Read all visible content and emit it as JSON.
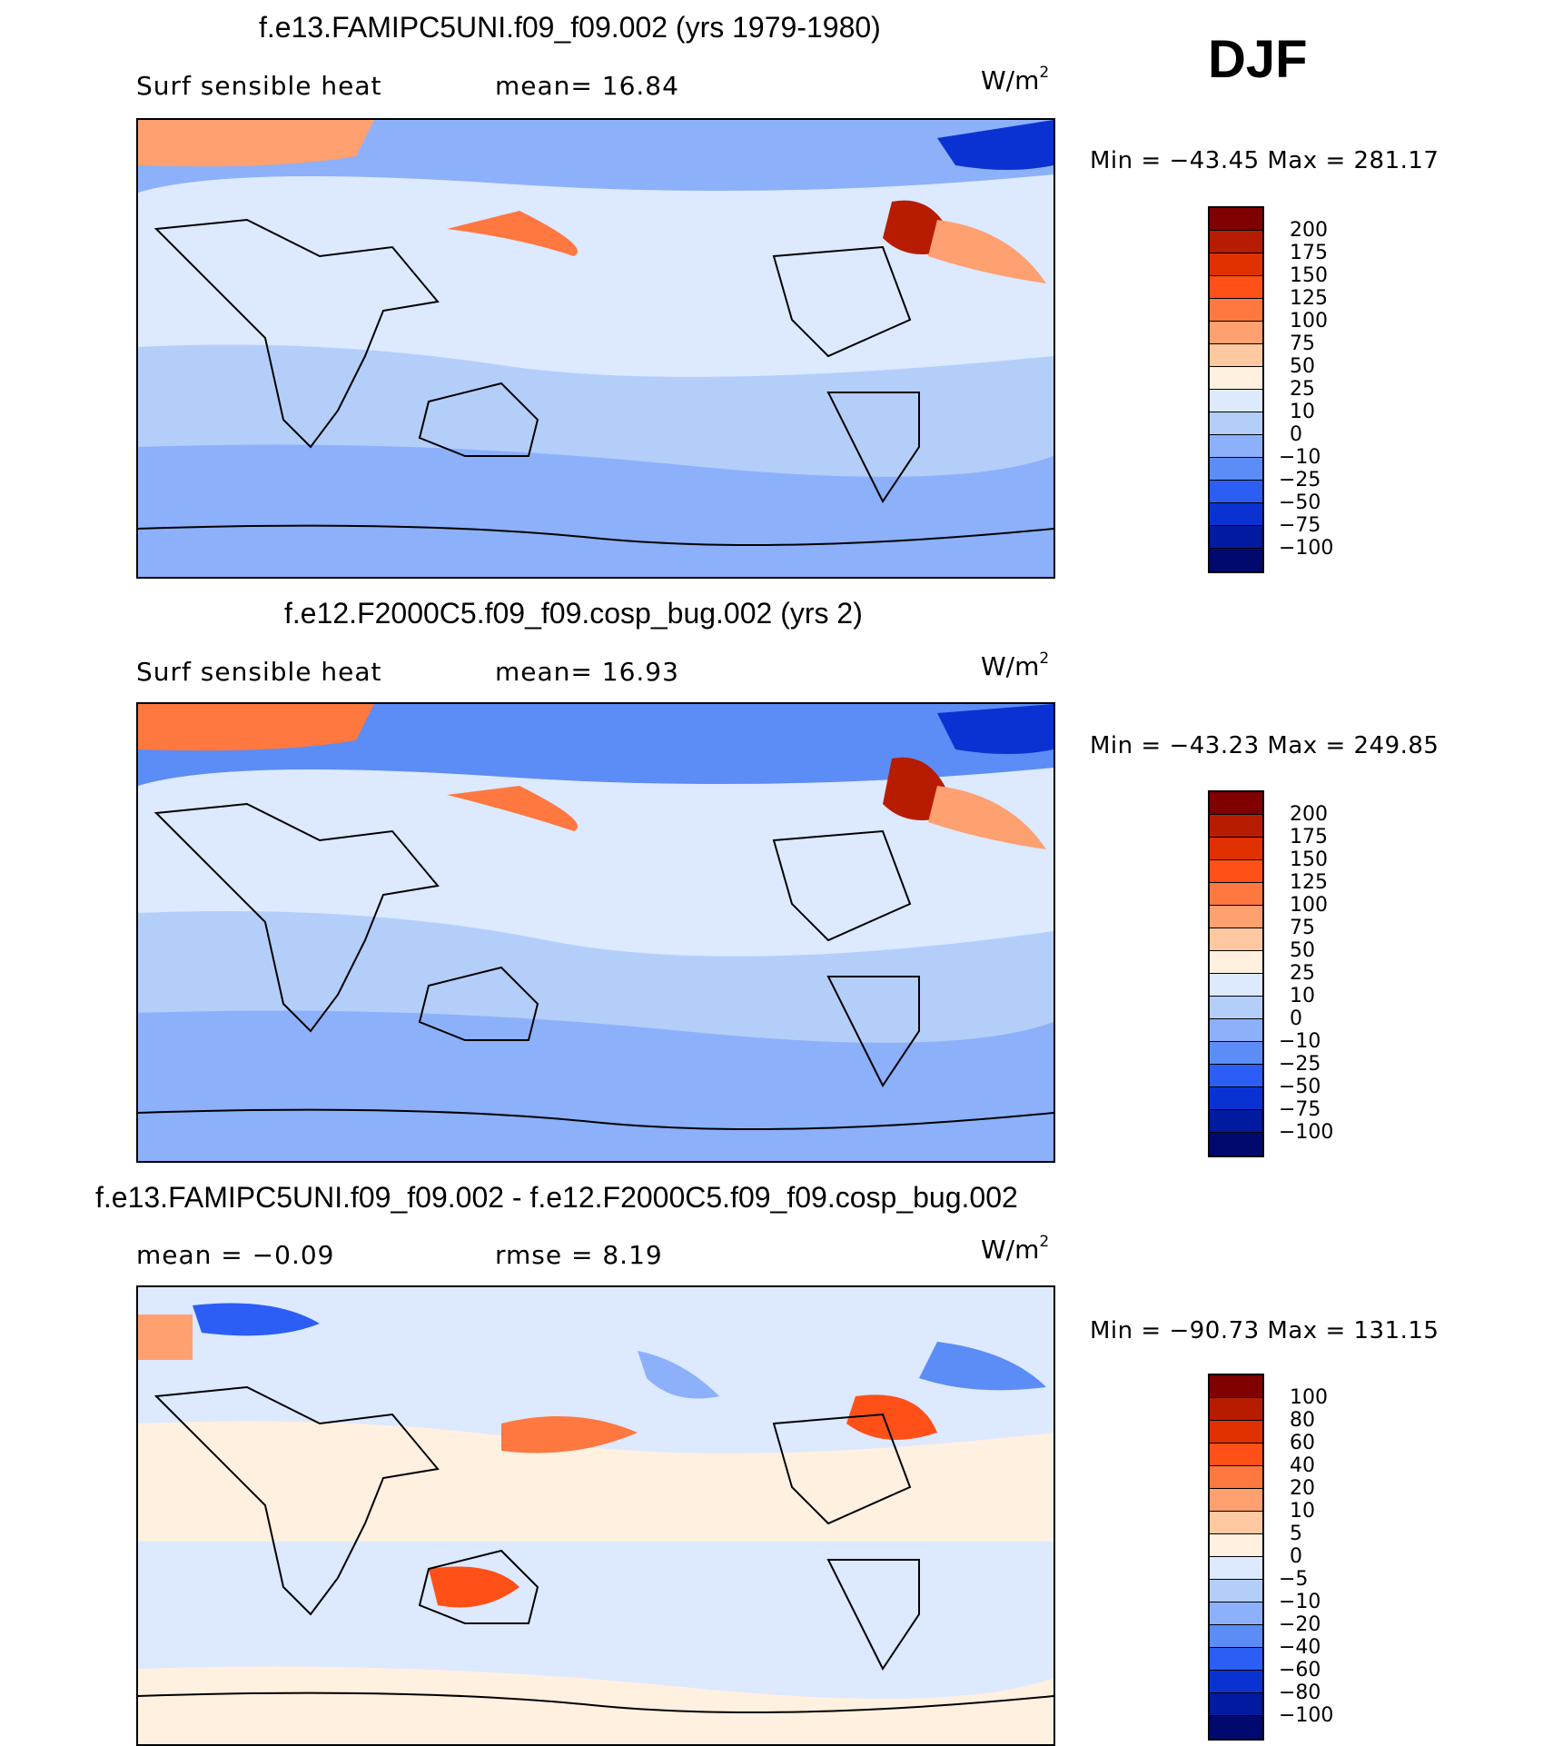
{
  "season": "DJF",
  "panels": [
    {
      "title": "f.e13.FAMIPC5UNI.f09_f09.002 (yrs 1979-1980)",
      "left_label": "Surf  sensible  heat",
      "mid_label": "mean=   16.84",
      "unit": "W/m",
      "unit_sup": "2",
      "minmax": "Min  =  −43.45  Max  =  281.17",
      "map_label": "Surface sensible heat flux map, model run 1979-1980"
    },
    {
      "title": "f.e12.F2000C5.f09_f09.cosp_bug.002 (yrs 2)",
      "left_label": "Surf  sensible  heat",
      "mid_label": "mean=   16.93",
      "unit": "W/m",
      "unit_sup": "2",
      "minmax": "Min  =  −43.23  Max  =  249.85",
      "map_label": "Surface sensible heat flux map, model run yrs 2"
    },
    {
      "title": "f.e13.FAMIPC5UNI.f09_f09.002 - f.e12.F2000C5.f09_f09.cosp_bug.002",
      "left_label": "mean  =    −0.09",
      "mid_label": "rmse  =     8.19",
      "unit": "W/m",
      "unit_sup": "2",
      "minmax": "Min  =  −90.73  Max  =  131.15",
      "map_label": "Difference map of surface sensible heat flux"
    }
  ],
  "colorbars": [
    {
      "ticks": [
        "200",
        "175",
        "150",
        "125",
        "100",
        "75",
        "50",
        "25",
        "10",
        "0",
        "−10",
        "−25",
        "−50",
        "−75",
        "−100"
      ],
      "colors": [
        "#800000",
        "#b81c00",
        "#e03000",
        "#ff5018",
        "#ff7840",
        "#ffa070",
        "#ffc8a0",
        "#fff0e0",
        "#dce9ff",
        "#b4cefa",
        "#8cb0fa",
        "#5c8cf5",
        "#2c5ef5",
        "#0a32d2",
        "#001aa0",
        "#000a6e"
      ]
    },
    {
      "ticks": [
        "200",
        "175",
        "150",
        "125",
        "100",
        "75",
        "50",
        "25",
        "10",
        "0",
        "−10",
        "−25",
        "−50",
        "−75",
        "−100"
      ],
      "colors": [
        "#800000",
        "#b81c00",
        "#e03000",
        "#ff5018",
        "#ff7840",
        "#ffa070",
        "#ffc8a0",
        "#fff0e0",
        "#dce9ff",
        "#b4cefa",
        "#8cb0fa",
        "#5c8cf5",
        "#2c5ef5",
        "#0a32d2",
        "#001aa0",
        "#000a6e"
      ]
    },
    {
      "ticks": [
        "100",
        "80",
        "60",
        "40",
        "20",
        "10",
        "5",
        "0",
        "−5",
        "−10",
        "−20",
        "−40",
        "−60",
        "−80",
        "−100"
      ],
      "colors": [
        "#800000",
        "#b81c00",
        "#e03000",
        "#ff5018",
        "#ff7840",
        "#ffa070",
        "#ffc8a0",
        "#fff0e0",
        "#dce9ff",
        "#b4cefa",
        "#8cb0fa",
        "#5c8cf5",
        "#2c5ef5",
        "#0a32d2",
        "#001aa0",
        "#000a6e"
      ]
    }
  ]
}
